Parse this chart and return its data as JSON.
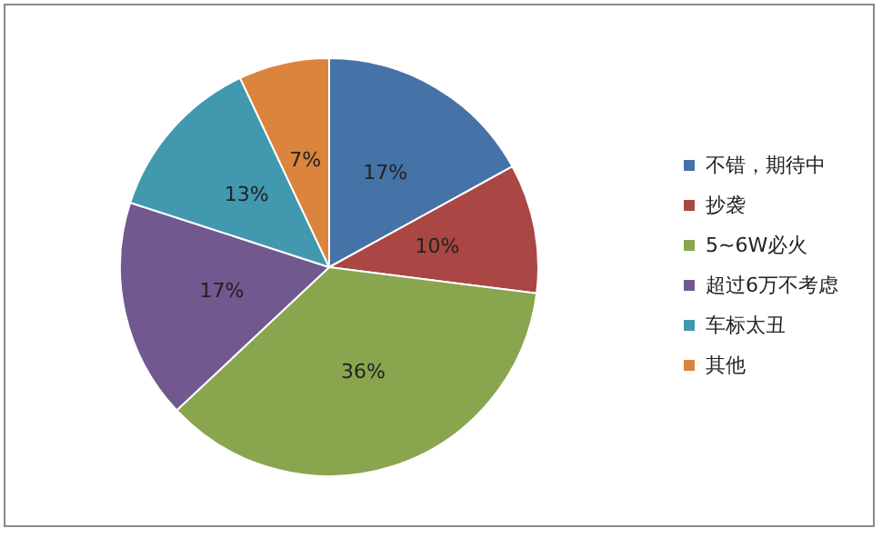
{
  "chart_data": {
    "type": "pie",
    "categories": [
      "不错，期待中",
      "抄袭",
      "5~6W必火",
      "超过6万不考虑",
      "车标太丑",
      "其他"
    ],
    "values": [
      17,
      10,
      36,
      17,
      13,
      7
    ],
    "colors": [
      "#4572a7",
      "#aa4643",
      "#89a54e",
      "#71588f",
      "#4198af",
      "#db843d"
    ],
    "value_labels": [
      "17%",
      "10%",
      "36%",
      "17%",
      "13%",
      "7%"
    ],
    "legend": "right"
  }
}
